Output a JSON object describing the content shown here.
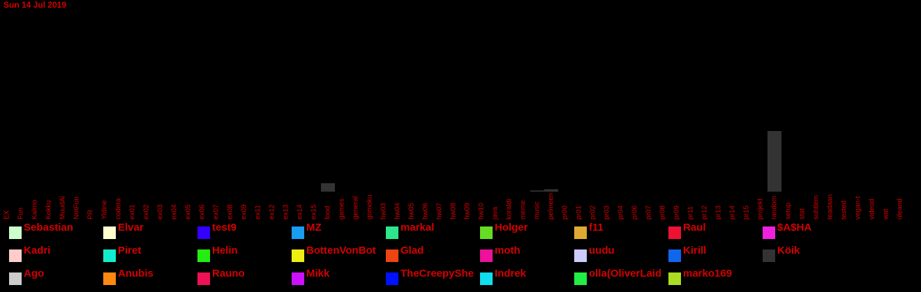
{
  "date_label": "Sun 14 Jul 2019",
  "chart_data": {
    "type": "bar",
    "title": "Sun 14 Jul 2019",
    "xlabel": "",
    "ylabel": "",
    "categories": [
      "EX",
      "Fun",
      "Kalmo",
      "Kokku",
      "MuudAi",
      "NotFun",
      "PR",
      "Yldine",
      "codera",
      "ex01",
      "ex02",
      "ex03",
      "ex04",
      "ex05",
      "ex06",
      "ex07",
      "ex08",
      "ex09",
      "ex11",
      "ex12",
      "ex13",
      "ex14",
      "ex15",
      "food",
      "games",
      "general",
      "gomoku",
      "hw03",
      "hw04",
      "hw05",
      "hw06",
      "hw07",
      "hw08",
      "hw09",
      "hw10",
      "java",
      "koraldi",
      "meme",
      "music",
      "pelmeen",
      "pr00",
      "pr01",
      "pr02",
      "pr03",
      "pr04",
      "pr06",
      "pr07",
      "pr08",
      "pr09",
      "pr11",
      "pr12",
      "pr13",
      "pr14",
      "pr15",
      "projekt",
      "random",
      "setup",
      "stat",
      "suhtlem",
      "teadaan",
      "tested",
      "vegan-t",
      "videod",
      "wat",
      "üleand"
    ],
    "ylim": [
      0,
      100
    ],
    "series": [
      {
        "name": "Sebastian",
        "values": [
          0,
          0,
          0,
          0,
          0,
          0,
          0,
          0,
          0,
          0,
          0,
          0,
          0,
          0,
          0,
          0,
          0,
          0,
          0,
          0,
          0,
          0,
          0,
          0,
          0,
          0,
          0,
          0,
          0,
          0,
          0,
          0,
          0,
          0,
          0,
          0,
          0,
          0,
          0,
          0,
          0,
          0,
          0,
          0,
          0,
          0,
          0,
          0,
          0,
          0,
          0,
          0,
          0,
          0,
          0,
          0,
          0,
          0,
          0,
          0,
          0,
          0,
          0,
          0,
          0
        ]
      },
      {
        "name": "Köik",
        "values": [
          0,
          0,
          0,
          0,
          0,
          0,
          0,
          0,
          0,
          0,
          0,
          0,
          0,
          0,
          0,
          0,
          0,
          0,
          0,
          0,
          0,
          0,
          0,
          14,
          0,
          0,
          0,
          0,
          0,
          0,
          0,
          0,
          0,
          0,
          0,
          0,
          0,
          0,
          2,
          4,
          0,
          0,
          0,
          0,
          0,
          0,
          0,
          0,
          0,
          0,
          0,
          0,
          0,
          0,
          0,
          100,
          0,
          0,
          0,
          0,
          0,
          0,
          0,
          0,
          0
        ]
      }
    ],
    "legend": [
      {
        "name": "Sebastian",
        "color": "#ccffcc"
      },
      {
        "name": "Elvar",
        "color": "#ffffcc"
      },
      {
        "name": "test9",
        "color": "#3300ff"
      },
      {
        "name": "MZ",
        "color": "#1a9cf0"
      },
      {
        "name": "markal",
        "color": "#2ee68c"
      },
      {
        "name": "Holger",
        "color": "#66dd22"
      },
      {
        "name": "f11",
        "color": "#ddaa33"
      },
      {
        "name": "Raul",
        "color": "#ee1133"
      },
      {
        "name": "$A$HA",
        "color": "#ee22dd"
      },
      {
        "name": "Kadri",
        "color": "#ffcccc"
      },
      {
        "name": "Piret",
        "color": "#11eecc"
      },
      {
        "name": "Helin",
        "color": "#22ee11"
      },
      {
        "name": "BottenVonBot",
        "color": "#eeee11"
      },
      {
        "name": "Glad",
        "color": "#ee4411"
      },
      {
        "name": "moth",
        "color": "#ee1199"
      },
      {
        "name": "uudu",
        "color": "#ccccff"
      },
      {
        "name": "Kirill",
        "color": "#1166ee"
      },
      {
        "name": "Köik",
        "color": "#333333"
      },
      {
        "name": "Ago",
        "color": "#cccccc"
      },
      {
        "name": "Anubis",
        "color": "#ff8811"
      },
      {
        "name": "Rauno",
        "color": "#ee1155"
      },
      {
        "name": "Mikk",
        "color": "#cc11ff"
      },
      {
        "name": "TheCreepyShe",
        "color": "#0011ff"
      },
      {
        "name": "Indrek",
        "color": "#11ddee"
      },
      {
        "name": "olla(OliverLaid",
        "color": "#22ee44"
      },
      {
        "name": "marko169",
        "color": "#aadd22"
      }
    ]
  }
}
